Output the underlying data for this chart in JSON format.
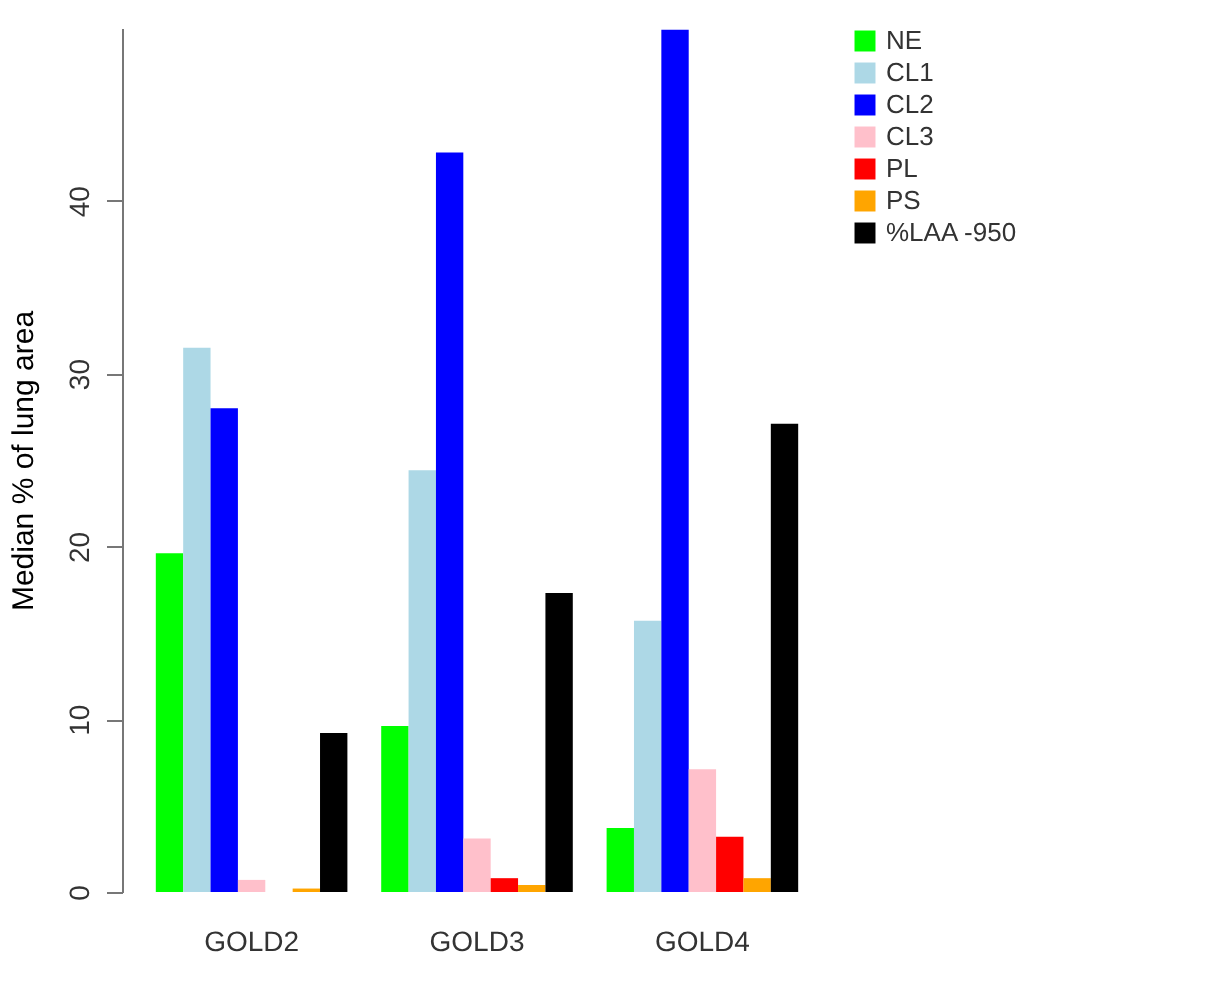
{
  "chart_data": {
    "type": "bar",
    "ylabel": "Median % of lung area",
    "categories": [
      "GOLD2",
      "GOLD3",
      "GOLD4"
    ],
    "series": [
      {
        "name": "NE",
        "color": "#00ff00",
        "values": [
          19.6,
          9.6,
          3.7
        ]
      },
      {
        "name": "CL1",
        "color": "#add8e6",
        "values": [
          31.5,
          24.4,
          15.7
        ]
      },
      {
        "name": "CL2",
        "color": "#0000ff",
        "values": [
          28.0,
          42.8,
          49.9
        ]
      },
      {
        "name": "CL3",
        "color": "#ffc0cb",
        "values": [
          0.7,
          3.1,
          7.1
        ]
      },
      {
        "name": "PL",
        "color": "#ff0000",
        "values": [
          0,
          0.8,
          3.2
        ]
      },
      {
        "name": "PS",
        "color": "#ffa500",
        "values": [
          0.2,
          0.4,
          0.8
        ]
      },
      {
        "name": "%LAA -950",
        "color": "#000000",
        "values": [
          9.2,
          17.3,
          27.1
        ]
      }
    ],
    "ylim": [
      0,
      50
    ],
    "yticks": [
      0,
      10,
      20,
      30,
      40
    ],
    "grid": false,
    "legend": "top right"
  }
}
